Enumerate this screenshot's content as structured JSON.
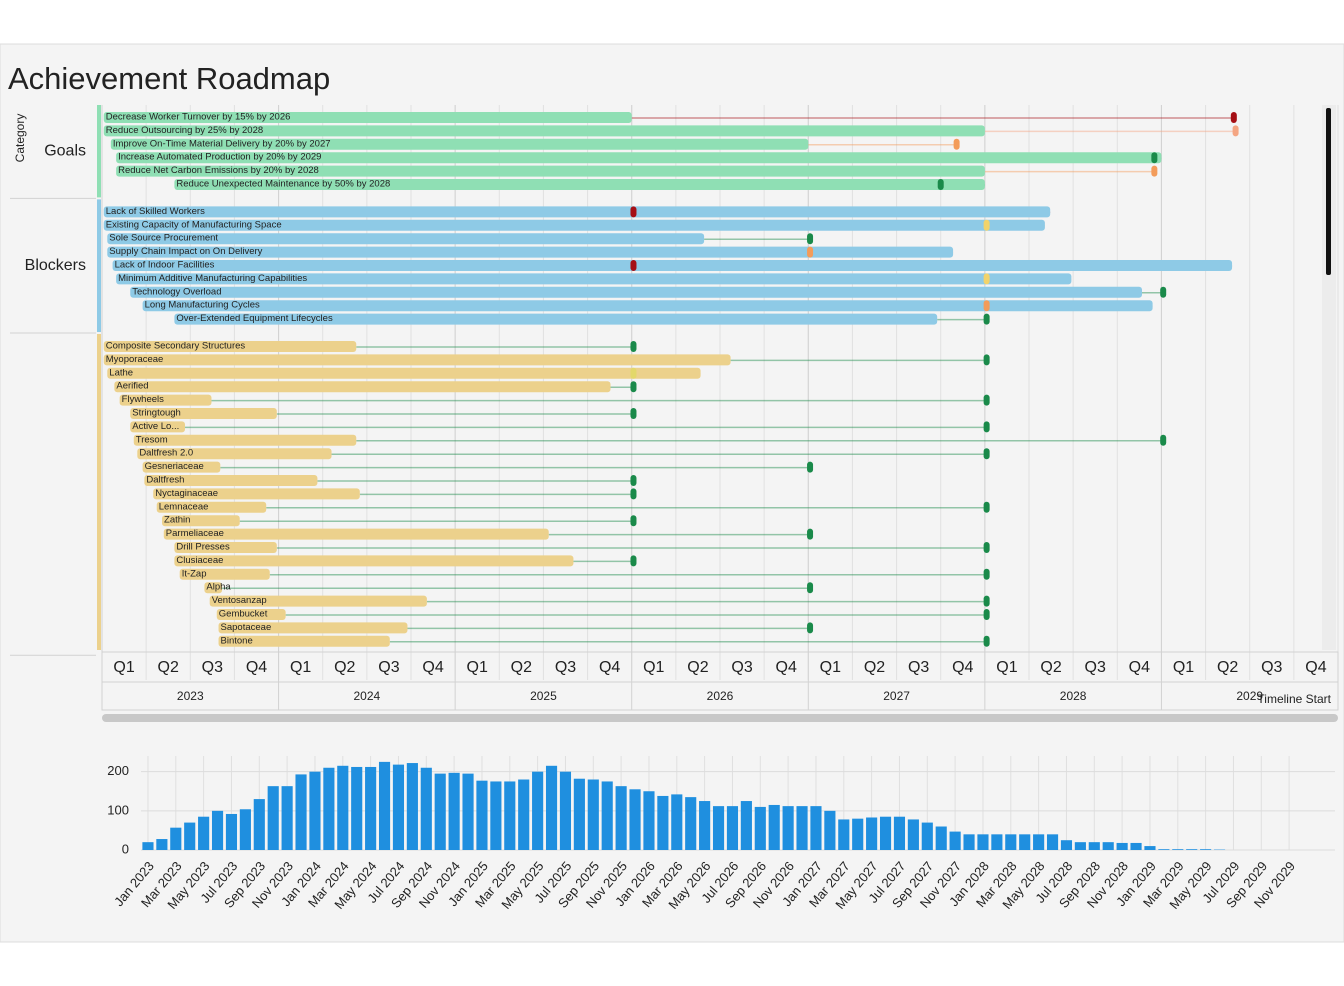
{
  "title": "Achievement Roadmap",
  "chart_data": [
    {
      "type": "gantt",
      "axis_label": "Category",
      "timeline_label": "Timeline Start",
      "xlim": [
        2023,
        2030
      ],
      "years": [
        2023,
        2024,
        2025,
        2026,
        2027,
        2028,
        2029
      ],
      "quarters": [
        "Q1",
        "Q2",
        "Q3",
        "Q4"
      ],
      "groups": [
        {
          "name": "Goals",
          "color": "#8fdfb4",
          "rows": [
            {
              "label": "Decrease Worker Turnover by 15% by 2026",
              "start": 2023.01,
              "end": 2026.0,
              "milestone": 2029.41,
              "milestone_color": "#a50f15"
            },
            {
              "label": "Reduce Outsourcing by 25% by 2028",
              "start": 2023.01,
              "end": 2028.0,
              "milestone": 2029.42,
              "milestone_color": "#f4a582"
            },
            {
              "label": "Improve On-Time Material Delivery by 20% by 2027",
              "start": 2023.05,
              "end": 2027.0,
              "milestone": 2027.84,
              "milestone_color": "#f39c5a"
            },
            {
              "label": "Increase Automated Production by 20% by 2029",
              "start": 2023.08,
              "end": 2029.0,
              "milestone": 2028.96,
              "milestone_color": "#1a8a4a"
            },
            {
              "label": "Reduce Net Carbon Emissions by 20% by 2028",
              "start": 2023.08,
              "end": 2028.0,
              "milestone": 2028.96,
              "milestone_color": "#f39c5a"
            },
            {
              "label": "Reduce Unexpected Maintenance by 50% by 2028",
              "start": 2023.41,
              "end": 2028.0,
              "milestone": 2027.75,
              "milestone_color": "#1a8a4a"
            }
          ]
        },
        {
          "name": "Blockers",
          "color": "#8ecae6",
          "rows": [
            {
              "label": "Lack of Skilled Workers",
              "start": 2023.01,
              "end": 2028.37,
              "milestone": 2026.01,
              "milestone_color": "#a50f15"
            },
            {
              "label": "Existing Capacity of Manufacturing Space",
              "start": 2023.01,
              "end": 2028.34,
              "milestone": 2028.01,
              "milestone_color": "#f2d36b"
            },
            {
              "label": "Sole Source Procurement",
              "start": 2023.03,
              "end": 2026.41,
              "milestone": 2027.01,
              "milestone_color": "#1a8a4a"
            },
            {
              "label": "Supply Chain Impact on On Delivery",
              "start": 2023.03,
              "end": 2027.82,
              "milestone": 2027.01,
              "milestone_color": "#f39c5a"
            },
            {
              "label": "Lack of Indoor Facilities",
              "start": 2023.06,
              "end": 2029.4,
              "milestone": 2026.01,
              "milestone_color": "#a50f15"
            },
            {
              "label": "Minimum Additive Manufacturing Capabilities",
              "start": 2023.08,
              "end": 2028.49,
              "milestone": 2028.01,
              "milestone_color": "#f2d36b"
            },
            {
              "label": "Technology Overload",
              "start": 2023.16,
              "end": 2028.89,
              "milestone": 2029.01,
              "milestone_color": "#1a8a4a"
            },
            {
              "label": "Long Manufacturing Cycles",
              "start": 2023.23,
              "end": 2028.95,
              "milestone": 2028.01,
              "milestone_color": "#f39c5a"
            },
            {
              "label": "Over-Extended Equipment Lifecycles",
              "start": 2023.41,
              "end": 2027.73,
              "milestone": 2028.01,
              "milestone_color": "#1a8a4a"
            }
          ]
        },
        {
          "name": null,
          "color": "#ecd18c",
          "rows": [
            {
              "label": "Composite Secondary Structures",
              "start": 2023.01,
              "end": 2024.44,
              "milestone": 2026.01,
              "milestone_color": "#1a8a4a"
            },
            {
              "label": "Myoporaceae",
              "start": 2023.01,
              "end": 2026.56,
              "milestone": 2028.01,
              "milestone_color": "#1a8a4a"
            },
            {
              "label": "Lathe",
              "start": 2023.03,
              "end": 2026.39,
              "milestone": 2026.01,
              "milestone_color": "#e3d86a"
            },
            {
              "label": "Aerified",
              "start": 2023.07,
              "end": 2025.88,
              "milestone": 2026.01,
              "milestone_color": "#1a8a4a"
            },
            {
              "label": "Flywheels",
              "start": 2023.1,
              "end": 2023.62,
              "milestone": 2028.01,
              "milestone_color": "#1a8a4a"
            },
            {
              "label": "Stringtough",
              "start": 2023.16,
              "end": 2023.99,
              "milestone": 2026.01,
              "milestone_color": "#1a8a4a"
            },
            {
              "label": "Active Lo...",
              "start": 2023.16,
              "end": 2023.47,
              "milestone": 2028.01,
              "milestone_color": "#1a8a4a"
            },
            {
              "label": "Tresom",
              "start": 2023.18,
              "end": 2024.44,
              "milestone": 2029.01,
              "milestone_color": "#1a8a4a"
            },
            {
              "label": "Daltfresh 2.0",
              "start": 2023.2,
              "end": 2024.3,
              "milestone": 2028.01,
              "milestone_color": "#1a8a4a"
            },
            {
              "label": "Gesneriaceae",
              "start": 2023.23,
              "end": 2023.67,
              "milestone": 2027.01,
              "milestone_color": "#1a8a4a"
            },
            {
              "label": "Daltfresh",
              "start": 2023.24,
              "end": 2024.22,
              "milestone": 2026.01,
              "milestone_color": "#1a8a4a"
            },
            {
              "label": "Nyctaginaceae",
              "start": 2023.29,
              "end": 2024.46,
              "milestone": 2026.01,
              "milestone_color": "#1a8a4a"
            },
            {
              "label": "Lemnaceae",
              "start": 2023.31,
              "end": 2023.93,
              "milestone": 2028.01,
              "milestone_color": "#1a8a4a"
            },
            {
              "label": "Zathin",
              "start": 2023.34,
              "end": 2023.78,
              "milestone": 2026.01,
              "milestone_color": "#1a8a4a"
            },
            {
              "label": "Parmeliaceae",
              "start": 2023.35,
              "end": 2025.53,
              "milestone": 2027.01,
              "milestone_color": "#1a8a4a"
            },
            {
              "label": "Drill Presses",
              "start": 2023.41,
              "end": 2023.99,
              "milestone": 2028.01,
              "milestone_color": "#1a8a4a"
            },
            {
              "label": "Clusiaceae",
              "start": 2023.41,
              "end": 2025.67,
              "milestone": 2026.01,
              "milestone_color": "#1a8a4a"
            },
            {
              "label": "It-Zap",
              "start": 2023.44,
              "end": 2023.95,
              "milestone": 2028.01,
              "milestone_color": "#1a8a4a"
            },
            {
              "label": "Alpha",
              "start": 2023.58,
              "end": 2023.68,
              "milestone": 2027.01,
              "milestone_color": "#1a8a4a"
            },
            {
              "label": "Ventosanzap",
              "start": 2023.61,
              "end": 2024.84,
              "milestone": 2028.01,
              "milestone_color": "#1a8a4a"
            },
            {
              "label": "Gembucket",
              "start": 2023.65,
              "end": 2024.04,
              "milestone": 2028.01,
              "milestone_color": "#1a8a4a"
            },
            {
              "label": "Sapotaceae",
              "start": 2023.66,
              "end": 2024.73,
              "milestone": 2027.01,
              "milestone_color": "#1a8a4a"
            },
            {
              "label": "Bintone",
              "start": 2023.66,
              "end": 2024.63,
              "milestone": 2028.01,
              "milestone_color": "#1a8a4a"
            }
          ]
        }
      ]
    },
    {
      "type": "bar",
      "color": "#1f8fdf",
      "ylim": [
        0,
        240
      ],
      "yticks": [
        0,
        100,
        200
      ],
      "categories": [
        "Jan 2023",
        null,
        "Mar 2023",
        null,
        "May 2023",
        null,
        "Jul 2023",
        null,
        "Sep 2023",
        null,
        "Nov 2023",
        null,
        "Jan 2024",
        null,
        "Mar 2024",
        null,
        "May 2024",
        null,
        "Jul 2024",
        null,
        "Sep 2024",
        null,
        "Nov 2024",
        null,
        "Jan 2025",
        null,
        "Mar 2025",
        null,
        "May 2025",
        null,
        "Jul 2025",
        null,
        "Sep 2025",
        null,
        "Nov 2025",
        null,
        "Jan 2026",
        null,
        "Mar 2026",
        null,
        "May 2026",
        null,
        "Jul 2026",
        null,
        "Sep 2026",
        null,
        "Nov 2026",
        null,
        "Jan 2027",
        null,
        "Mar 2027",
        null,
        "May 2027",
        null,
        "Jul 2027",
        null,
        "Sep 2027",
        null,
        "Nov 2027",
        null,
        "Jan 2028",
        null,
        "Mar 2028",
        null,
        "May 2028",
        null,
        "Jul 2028",
        null,
        "Sep 2028",
        null,
        "Nov 2028",
        null,
        "Jan 2029",
        null,
        "Mar 2029",
        null,
        "May 2029",
        null,
        "Jul 2029",
        null,
        "Sep 2029",
        null,
        "Nov 2029",
        null
      ],
      "values": [
        20,
        28,
        57,
        70,
        85,
        100,
        92,
        104,
        130,
        163,
        163,
        193,
        200,
        210,
        215,
        212,
        212,
        225,
        218,
        222,
        210,
        195,
        197,
        195,
        177,
        175,
        175,
        180,
        200,
        215,
        200,
        182,
        180,
        175,
        163,
        155,
        150,
        138,
        142,
        135,
        125,
        112,
        112,
        125,
        110,
        115,
        112,
        112,
        112,
        100,
        78,
        80,
        83,
        85,
        85,
        78,
        70,
        60,
        47,
        40,
        40,
        40,
        40,
        40,
        40,
        40,
        25,
        20,
        20,
        20,
        18,
        18,
        10,
        2,
        2,
        2,
        2,
        1,
        0,
        0,
        0,
        0,
        0,
        0
      ]
    }
  ]
}
